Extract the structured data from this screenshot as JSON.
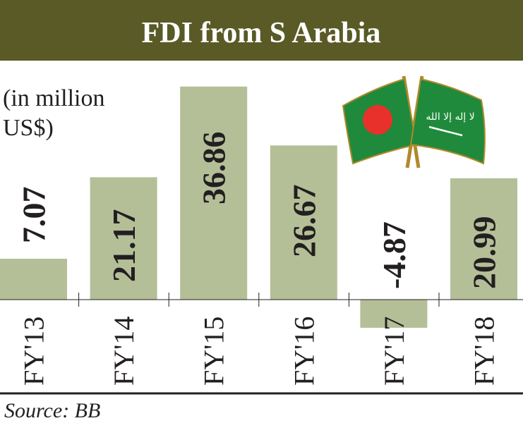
{
  "chart_data": {
    "type": "bar",
    "title": "FDI from S Arabia",
    "unit_label_line1": "(in million",
    "unit_label_line2": "US$)",
    "categories": [
      "FY'13",
      "FY'14",
      "FY'15",
      "FY'16",
      "FY'17",
      "FY'18"
    ],
    "values": [
      7.07,
      21.17,
      36.86,
      26.67,
      -4.87,
      20.99
    ],
    "value_labels": [
      "7.07",
      "21.17",
      "36.86",
      "26.67",
      "-4.87",
      "20.99"
    ],
    "xlabel": "",
    "ylabel": "",
    "ylim": [
      -6,
      40
    ],
    "grid": false,
    "source": "Source: BB",
    "colors": {
      "header": "#595a26",
      "bar": "#b4bf98",
      "text": "#231f20"
    }
  }
}
